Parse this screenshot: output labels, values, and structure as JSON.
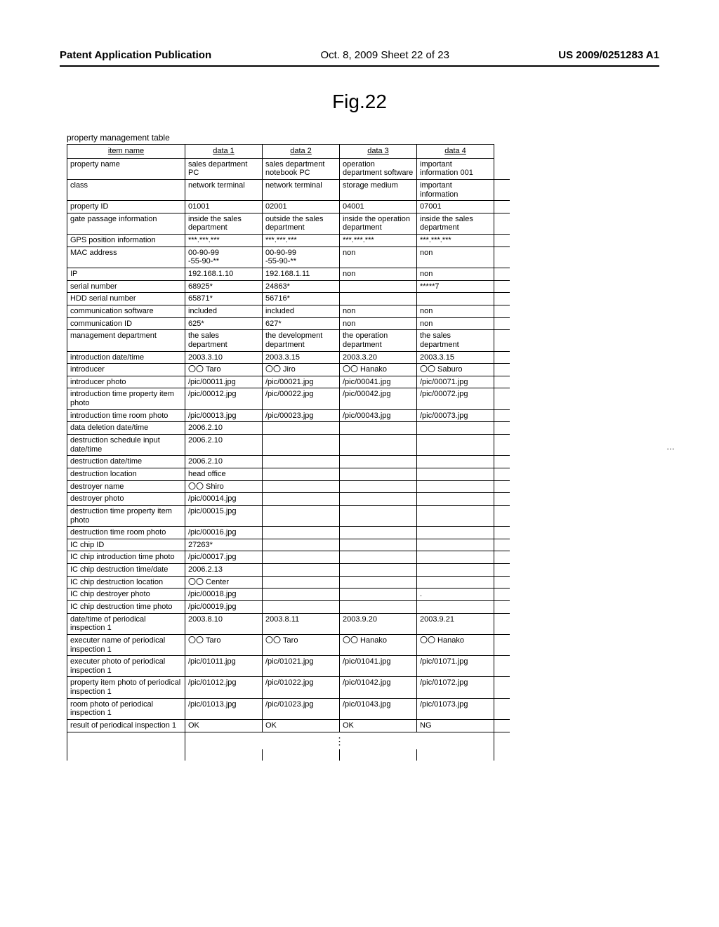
{
  "header": {
    "left": "Patent Application Publication",
    "mid": "Oct. 8, 2009  Sheet 22 of 23",
    "right": "US 2009/0251283 A1"
  },
  "figure_title": "Fig.22",
  "table_caption": "property management table",
  "columns": [
    "item  name",
    "data 1",
    "data 2",
    "data 3",
    "data 4"
  ],
  "rows": [
    {
      "item": "property name",
      "d": [
        "sales department PC",
        "sales department notebook PC",
        "operation department software",
        "important information 001"
      ]
    },
    {
      "item": "class",
      "d": [
        "network terminal",
        "network terminal",
        "storage medium",
        "important information"
      ]
    },
    {
      "item": "property ID",
      "d": [
        "01001",
        "02001",
        "04001",
        "07001"
      ]
    },
    {
      "item": "gate passage information",
      "d": [
        "inside the sales department",
        "outside the sales department",
        "inside the operation department",
        "inside the sales department"
      ]
    },
    {
      "item": "GPS position information",
      "d": [
        "***.***.***",
        "***.***.***",
        "***.***.***",
        "***.***.***"
      ]
    },
    {
      "item": "MAC address",
      "d": [
        "00-90-99\n-55-90-**",
        "00-90-99\n-55-90-**",
        "non",
        "non"
      ]
    },
    {
      "item": "IP",
      "d": [
        "192.168.1.10",
        "192.168.1.11",
        "non",
        "non"
      ]
    },
    {
      "item": "serial number",
      "d": [
        "68925*",
        "24863*",
        "",
        "*****7"
      ]
    },
    {
      "item": "HDD serial number",
      "d": [
        "65871*",
        "56716*",
        "",
        ""
      ]
    },
    {
      "item": "communication software",
      "d": [
        "included",
        "included",
        "non",
        "non"
      ]
    },
    {
      "item": "communication ID",
      "d": [
        "625*",
        "627*",
        "non",
        "non"
      ]
    },
    {
      "item": "management department",
      "d": [
        "the sales department",
        "the development department",
        "the operation department",
        "the sales department"
      ]
    },
    {
      "item": "introduction date/time",
      "d": [
        "2003.3.10",
        "2003.3.15",
        "2003.3.20",
        "2003.3.15"
      ]
    },
    {
      "item": "introducer",
      "d": [
        "〇〇 Taro",
        "〇〇 Jiro",
        "〇〇 Hanako",
        "〇〇 Saburo"
      ]
    },
    {
      "item": "introducer photo",
      "d": [
        "/pic/00011.jpg",
        "/pic/00021.jpg",
        "/pic/00041.jpg",
        "/pic/00071.jpg"
      ]
    },
    {
      "item": "introduction time property item photo",
      "d": [
        "/pic/00012.jpg",
        "/pic/00022.jpg",
        "/pic/00042.jpg",
        "/pic/00072.jpg"
      ]
    },
    {
      "item": "introduction time room photo",
      "d": [
        "/pic/00013.jpg",
        "/pic/00023.jpg",
        "/pic/00043.jpg",
        "/pic/00073.jpg"
      ]
    },
    {
      "item": "data deletion date/time",
      "d": [
        "2006.2.10",
        "",
        "",
        ""
      ]
    },
    {
      "item": "destruction schedule input date/time",
      "d": [
        "2006.2.10",
        "",
        "",
        ""
      ]
    },
    {
      "item": "destruction date/time",
      "d": [
        "2006.2.10",
        "",
        "",
        ""
      ]
    },
    {
      "item": "destruction location",
      "d": [
        "head office",
        "",
        "",
        ""
      ]
    },
    {
      "item": "destroyer name",
      "d": [
        "〇〇 Shiro",
        "",
        "",
        ""
      ]
    },
    {
      "item": "destroyer photo",
      "d": [
        "/pic/00014.jpg",
        "",
        "",
        ""
      ]
    },
    {
      "item": "destruction time property item photo",
      "d": [
        "/pic/00015.jpg",
        "",
        "",
        ""
      ]
    },
    {
      "item": "destruction time room photo",
      "d": [
        "/pic/00016.jpg",
        "",
        "",
        ""
      ]
    },
    {
      "item": "IC chip ID",
      "d": [
        "27263*",
        "",
        "",
        ""
      ]
    },
    {
      "item": "IC chip introduction time photo",
      "d": [
        "/pic/00017.jpg",
        "",
        "",
        ""
      ]
    },
    {
      "item": "IC chip destruction time/date",
      "d": [
        "2006.2.13",
        "",
        "",
        ""
      ]
    },
    {
      "item": "IC chip destruction location",
      "d": [
        "〇〇 Center",
        "",
        "",
        ""
      ]
    },
    {
      "item": "IC chip destroyer photo",
      "d": [
        "/pic/00018.jpg",
        "",
        "",
        "."
      ]
    },
    {
      "item": "IC chip destruction time photo",
      "d": [
        "/pic/00019.jpg",
        "",
        "",
        ""
      ]
    },
    {
      "item": "date/time of periodical inspection 1",
      "d": [
        "2003.8.10",
        "2003.8.11",
        "2003.9.20",
        "2003.9.21"
      ]
    },
    {
      "item": "executer name of periodical inspection 1",
      "d": [
        "〇〇 Taro",
        "〇〇 Taro",
        "〇〇 Hanako",
        "〇〇 Hanako"
      ]
    },
    {
      "item": "executer photo of periodical inspection 1",
      "d": [
        "/pic/01011.jpg",
        "/pic/01021.jpg",
        "/pic/01041.jpg",
        "/pic/01071.jpg"
      ]
    },
    {
      "item": "property item photo of periodical inspection 1",
      "d": [
        "/pic/01012.jpg",
        "/pic/01022.jpg",
        "/pic/01042.jpg",
        "/pic/01072.jpg"
      ]
    },
    {
      "item": "room photo of periodical inspection 1",
      "d": [
        "/pic/01013.jpg",
        "/pic/01023.jpg",
        "/pic/01043.jpg",
        "/pic/01073.jpg"
      ]
    },
    {
      "item": "result of periodical inspection 1",
      "d": [
        "OK",
        "OK",
        "OK",
        "NG"
      ]
    }
  ],
  "side_ellipsis": "…",
  "vdots": "⋮"
}
